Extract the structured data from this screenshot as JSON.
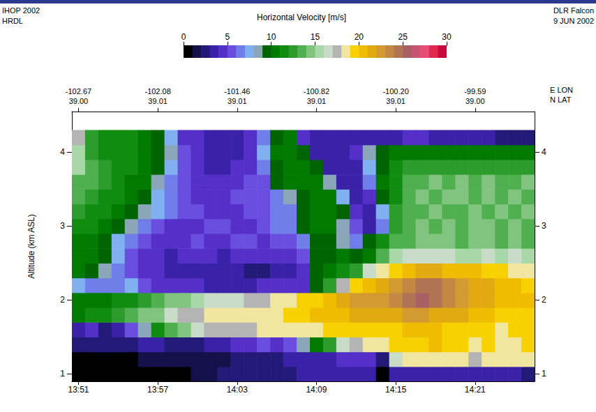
{
  "chart_data": {
    "type": "heatmap",
    "title": "Horizontal Velocity [m/s]",
    "corner_texts": {
      "top_left": [
        "IHOP 2002",
        "HRDL"
      ],
      "top_right": [
        "DLR Falcon",
        "9 JUN 2002"
      ]
    },
    "y_label": "Altitude (km ASL)",
    "x": [
      831,
      832,
      833,
      834,
      835,
      836,
      837,
      838,
      839,
      840,
      841,
      842,
      843,
      844,
      845,
      846,
      847,
      848,
      849,
      850,
      851,
      852,
      853,
      854,
      855,
      856,
      857,
      858,
      859,
      860,
      861,
      862,
      863,
      864,
      865
    ],
    "y": [
      1,
      1.2,
      1.4,
      1.6,
      1.8,
      2,
      2.2,
      2.4,
      2.6,
      2.8,
      3,
      3.2,
      3.4,
      3.6,
      3.8,
      4,
      4.2
    ],
    "values": [
      [
        0,
        0,
        0,
        0,
        0,
        0,
        0,
        0,
        0,
        1,
        1,
        2,
        2,
        2,
        2,
        2,
        2,
        3,
        3,
        3,
        3,
        3,
        3,
        0,
        3,
        3,
        3,
        3,
        3,
        3,
        3,
        3,
        3,
        3,
        2
      ],
      [
        0,
        0,
        0,
        0,
        0,
        1,
        1,
        1,
        1,
        1,
        1,
        1,
        2,
        2,
        2,
        2,
        3,
        3,
        3,
        3,
        4,
        4,
        4,
        2,
        16,
        18,
        18,
        18,
        18,
        18,
        17,
        18,
        18,
        18,
        18
      ],
      [
        2,
        2,
        2,
        2,
        2,
        3,
        3,
        2,
        2,
        2,
        3,
        3,
        4,
        4,
        5,
        4,
        5,
        8,
        10,
        12,
        16,
        17,
        18,
        18,
        19,
        19,
        19,
        20,
        19,
        19,
        18,
        19,
        18,
        18,
        19
      ],
      [
        3,
        4,
        2,
        3,
        5,
        8,
        11,
        13,
        14,
        16,
        17,
        17,
        17,
        17,
        18,
        18,
        18,
        18,
        18,
        19,
        19,
        19,
        19,
        19,
        19,
        20,
        20,
        20,
        19,
        19,
        19,
        19,
        18,
        19,
        19
      ],
      [
        10,
        11,
        11,
        12,
        13,
        14,
        14,
        16,
        17,
        17,
        18,
        18,
        18,
        18,
        18,
        18,
        19,
        19,
        20,
        20,
        20,
        21,
        21,
        21,
        21,
        22,
        22,
        21,
        21,
        21,
        20,
        20,
        19,
        19,
        19
      ],
      [
        10,
        10,
        10,
        11,
        11,
        12,
        13,
        14,
        14,
        15,
        16,
        16,
        16,
        17,
        17,
        18,
        18,
        19,
        19,
        20,
        21,
        22,
        22,
        22,
        23,
        24,
        25,
        24,
        23,
        22,
        21,
        21,
        20,
        20,
        20
      ],
      [
        7,
        6,
        6,
        6,
        7,
        5,
        4,
        4,
        4,
        4,
        3,
        3,
        3,
        3,
        4,
        4,
        4,
        4,
        9,
        12,
        17,
        19,
        20,
        21,
        22,
        23,
        24,
        24,
        23,
        22,
        21,
        21,
        20,
        20,
        19
      ],
      [
        10,
        9,
        8,
        6,
        5,
        4,
        4,
        3,
        3,
        3,
        3,
        3,
        3,
        2,
        2,
        3,
        3,
        4,
        9,
        10,
        11,
        12,
        16,
        18,
        19,
        20,
        21,
        21,
        20,
        20,
        20,
        19,
        19,
        18,
        18
      ],
      [
        10,
        10,
        9,
        7,
        5,
        4,
        4,
        3,
        4,
        4,
        4,
        3,
        4,
        4,
        4,
        4,
        4,
        5,
        9,
        9,
        10,
        9,
        10,
        13,
        15,
        16,
        16,
        16,
        16,
        15,
        15,
        16,
        15,
        16,
        15
      ],
      [
        10,
        10,
        9,
        7,
        6,
        5,
        4,
        4,
        4,
        5,
        4,
        4,
        5,
        5,
        4,
        5,
        5,
        6,
        9,
        9,
        8,
        6,
        9,
        11,
        13,
        13,
        14,
        14,
        14,
        13,
        14,
        14,
        13,
        14,
        13
      ],
      [
        11,
        11,
        10,
        9,
        8,
        6,
        5,
        4,
        4,
        4,
        5,
        5,
        4,
        4,
        5,
        6,
        6,
        9,
        10,
        10,
        8,
        5,
        3,
        6,
        12,
        13,
        14,
        13,
        14,
        13,
        14,
        14,
        13,
        14,
        13
      ],
      [
        12,
        11,
        11,
        10,
        9,
        8,
        7,
        6,
        5,
        5,
        4,
        4,
        4,
        5,
        5,
        6,
        6,
        9,
        10,
        10,
        9,
        4,
        3,
        7,
        12,
        13,
        13,
        14,
        13,
        13,
        14,
        13,
        14,
        13,
        14
      ],
      [
        13,
        12,
        11,
        11,
        10,
        9,
        7,
        6,
        5,
        4,
        4,
        4,
        5,
        5,
        5,
        6,
        8,
        9,
        10,
        10,
        7,
        3,
        4,
        9,
        11,
        13,
        14,
        13,
        14,
        14,
        13,
        14,
        13,
        14,
        13
      ],
      [
        13,
        13,
        12,
        11,
        10,
        10,
        8,
        6,
        5,
        4,
        4,
        4,
        4,
        5,
        5,
        9,
        10,
        10,
        10,
        8,
        3,
        3,
        6,
        10,
        11,
        13,
        13,
        14,
        13,
        14,
        13,
        14,
        13,
        13,
        14
      ],
      [
        15,
        13,
        12,
        11,
        11,
        10,
        9,
        7,
        5,
        4,
        3,
        3,
        4,
        4,
        6,
        9,
        10,
        10,
        9,
        3,
        3,
        3,
        7,
        9,
        11,
        12,
        12,
        12,
        12,
        12,
        12,
        12,
        12,
        12,
        12
      ],
      [
        15,
        12,
        11,
        11,
        11,
        10,
        9,
        8,
        5,
        4,
        3,
        3,
        3,
        4,
        7,
        10,
        10,
        9,
        3,
        3,
        3,
        4,
        8,
        9,
        10,
        10,
        10,
        10,
        10,
        10,
        10,
        10,
        10,
        10,
        10
      ],
      [
        17,
        12,
        11,
        11,
        11,
        10,
        9,
        7,
        4,
        4,
        3,
        3,
        3,
        4,
        6,
        9,
        10,
        4,
        3,
        3,
        3,
        3,
        3,
        3,
        3,
        4,
        4,
        3,
        3,
        3,
        3,
        3,
        2,
        2,
        2
      ]
    ],
    "xlim": [
      830.5,
      865.5
    ],
    "xticks": [
      {
        "value": 831,
        "label": "13:51"
      },
      {
        "value": 837,
        "label": "13:57"
      },
      {
        "value": 843,
        "label": "14:03"
      },
      {
        "value": 849,
        "label": "14:09"
      },
      {
        "value": 855,
        "label": "14:15"
      },
      {
        "value": 861,
        "label": "14:21"
      }
    ],
    "top_ticks": [
      {
        "value": 831,
        "lon_label": "-102.67",
        "lat_label": "39.00"
      },
      {
        "value": 837,
        "lon_label": "-102.08",
        "lat_label": "39.01"
      },
      {
        "value": 843,
        "lon_label": "-101.46",
        "lat_label": "39.01"
      },
      {
        "value": 849,
        "lon_label": "-100.82",
        "lat_label": "39.01"
      },
      {
        "value": 855,
        "lon_label": "-100.20",
        "lat_label": "39.01"
      },
      {
        "value": 861,
        "lon_label": "-99.59",
        "lat_label": "39.00"
      }
    ],
    "top_axis_label": [
      "E LON",
      "N LAT"
    ],
    "ylim": [
      0.9,
      4.55
    ],
    "yticks": [
      1,
      2,
      3,
      4
    ],
    "colorbar": {
      "range": [
        0,
        30
      ],
      "ticks": [
        0,
        5,
        10,
        15,
        20,
        25,
        30
      ],
      "colors": [
        "#000000",
        "#14104a",
        "#231a78",
        "#3a22a8",
        "#5430c8",
        "#6a4ee0",
        "#6f7ee8",
        "#80b0f0",
        "#8aa6b8",
        "#006400",
        "#007a00",
        "#108c10",
        "#2c9c2c",
        "#50b050",
        "#80c480",
        "#a8d8a8",
        "#c8dcc8",
        "#b4b4b4",
        "#f0e6a0",
        "#f8d200",
        "#f0bc00",
        "#e0aa10",
        "#d29a30",
        "#c28844",
        "#b07454",
        "#a86064",
        "#c85474",
        "#e84c74",
        "#e02850",
        "#c80a3c"
      ]
    },
    "grid": false
  }
}
